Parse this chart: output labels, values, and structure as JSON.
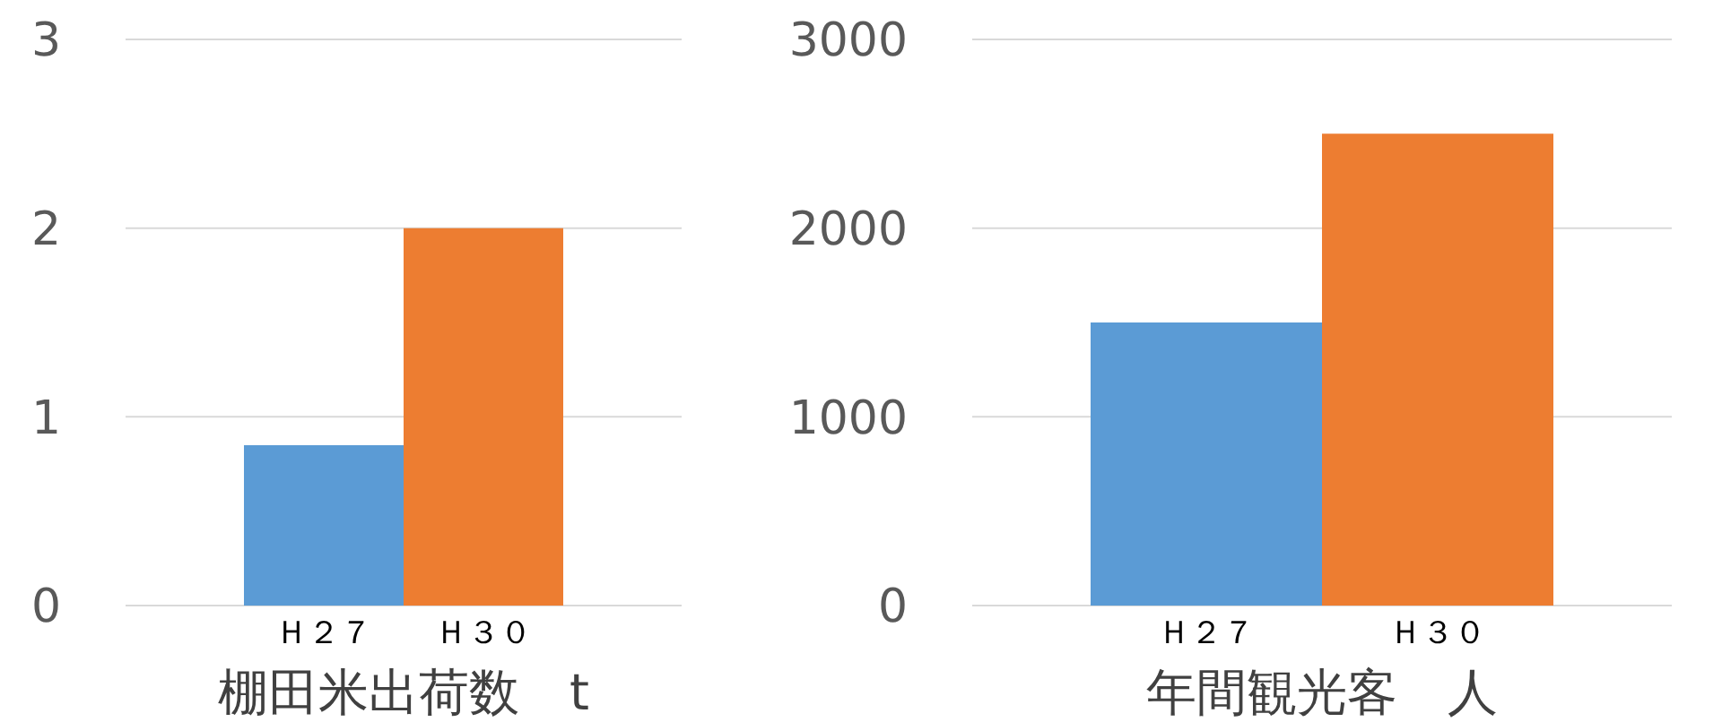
{
  "chart_data": [
    {
      "type": "bar",
      "xlabel": "棚田米出荷数　t",
      "categories": [
        "Ｈ２７",
        "Ｈ３０"
      ],
      "values": [
        0.85,
        2
      ],
      "colors": [
        "#5b9bd5",
        "#ed7d31"
      ],
      "ylim": [
        0,
        3
      ],
      "yticks": [
        0,
        1,
        2,
        3
      ],
      "grid": "y"
    },
    {
      "type": "bar",
      "xlabel": "年間観光客　人",
      "categories": [
        "Ｈ２７",
        "Ｈ３０"
      ],
      "values": [
        1500,
        2500
      ],
      "colors": [
        "#5b9bd5",
        "#ed7d31"
      ],
      "ylim": [
        0,
        3000
      ],
      "yticks": [
        0,
        1000,
        2000,
        3000
      ],
      "grid": "y"
    }
  ]
}
